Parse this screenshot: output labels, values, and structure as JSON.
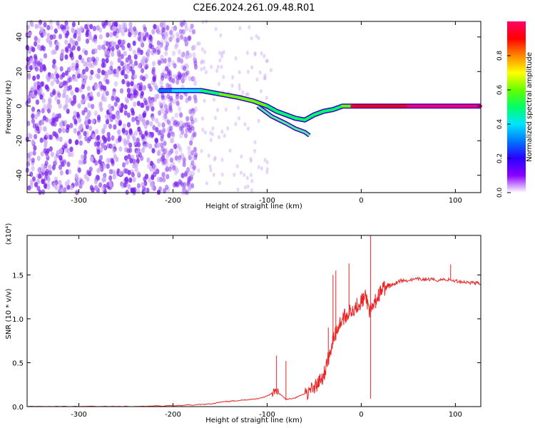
{
  "title": "C2E6.2024.261.09.48.R01",
  "chart_data": [
    {
      "type": "heatmap",
      "xlabel": "Height of straight line (km)",
      "ylabel": "Frequency (Hz)",
      "xlim": [
        -355,
        127
      ],
      "ylim": [
        -50,
        49
      ],
      "xticks": [
        -300,
        -200,
        -100,
        0,
        100
      ],
      "yticks": [
        -40,
        -20,
        0,
        20,
        40
      ],
      "colorbar": {
        "label": "Normalized spectral amplitude",
        "range": [
          0,
          1
        ],
        "ticks": [
          "0.0",
          "0.2",
          "0.4",
          "0.6",
          "0.8"
        ],
        "colors": [
          "#ffffff",
          "#8a00ff",
          "#2a00ff",
          "#0077ff",
          "#00e5ff",
          "#00ff66",
          "#66ff00",
          "#ffff00",
          "#ff8800",
          "#ff0000",
          "#ff0066"
        ]
      },
      "noise_region_x": [
        -355,
        -175
      ],
      "ridge": {
        "x": [
          -215,
          -200,
          -185,
          -170,
          -150,
          -130,
          -115,
          -100,
          -90,
          -80,
          -70,
          -60,
          -50,
          -40,
          -30,
          -20,
          -10,
          0,
          20,
          50,
          80,
          110,
          127
        ],
        "frequency": [
          9,
          9,
          9,
          9,
          7,
          5,
          3,
          0,
          -3,
          -5,
          -7,
          -8,
          -5,
          -3,
          -2,
          0,
          0,
          0,
          0,
          0,
          0,
          0,
          0
        ],
        "amplitude": [
          0.3,
          0.35,
          0.4,
          0.45,
          0.55,
          0.6,
          0.55,
          0.45,
          0.5,
          0.5,
          0.5,
          0.45,
          0.45,
          0.5,
          0.5,
          0.6,
          0.85,
          0.9,
          0.92,
          0.95,
          0.95,
          0.95,
          0.9
        ]
      },
      "secondary_branch": {
        "x": [
          -110,
          -95,
          -80,
          -70,
          -60,
          -55
        ],
        "frequency": [
          0,
          -6,
          -10,
          -13,
          -15,
          -17
        ]
      }
    },
    {
      "type": "line",
      "xlabel": "Height of straight line (km)",
      "ylabel": "SNR (10 * v/v)",
      "y_multiplier": "(x10⁴)",
      "xlim": [
        -355,
        127
      ],
      "ylim": [
        0,
        1.95
      ],
      "xticks": [
        -300,
        -200,
        -100,
        0,
        100
      ],
      "yticks": [
        "0.0",
        "0.5",
        "1.0",
        "1.5"
      ],
      "series_color": "#ee2222",
      "x": [
        -355,
        -300,
        -250,
        -200,
        -175,
        -160,
        -150,
        -140,
        -130,
        -120,
        -110,
        -100,
        -95,
        -90,
        -80,
        -70,
        -60,
        -50,
        -45,
        -40,
        -35,
        -30,
        -25,
        -20,
        -15,
        -10,
        -5,
        0,
        5,
        10,
        15,
        20,
        25,
        30,
        35,
        40,
        50,
        60,
        70,
        80,
        90,
        100,
        110,
        120,
        127
      ],
      "y": [
        0.0,
        0.0,
        0.0,
        0.01,
        0.02,
        0.03,
        0.05,
        0.06,
        0.07,
        0.08,
        0.09,
        0.12,
        0.15,
        0.18,
        0.08,
        0.1,
        0.15,
        0.2,
        0.3,
        0.35,
        0.55,
        0.75,
        0.9,
        1.0,
        1.05,
        1.1,
        1.15,
        1.2,
        1.25,
        1.05,
        1.2,
        1.3,
        1.35,
        1.38,
        1.4,
        1.43,
        1.44,
        1.45,
        1.45,
        1.44,
        1.45,
        1.43,
        1.42,
        1.41,
        1.4
      ],
      "spikes": [
        {
          "x": -90,
          "y": 0.58
        },
        {
          "x": -80,
          "y": 0.52
        },
        {
          "x": -35,
          "y": 0.9
        },
        {
          "x": -30,
          "y": 1.5
        },
        {
          "x": -27,
          "y": 1.55
        },
        {
          "x": -13,
          "y": 1.63
        },
        {
          "x": 10,
          "y": 1.95
        },
        {
          "x": 10,
          "y": 0.09
        },
        {
          "x": 95,
          "y": 1.62
        }
      ]
    }
  ]
}
